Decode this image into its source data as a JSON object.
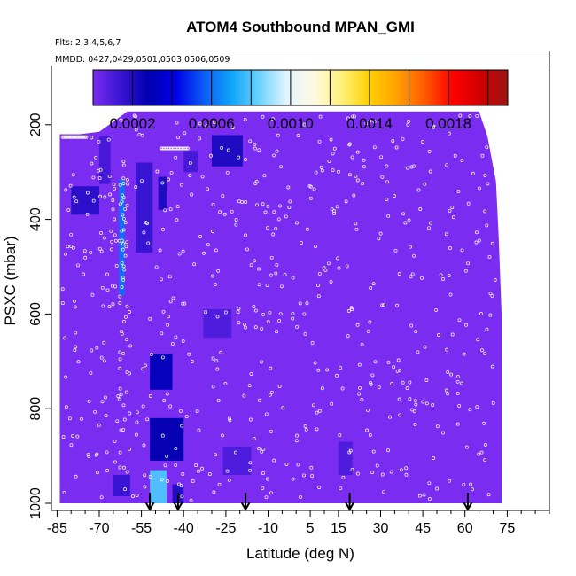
{
  "chart_data": {
    "type": "heatmap",
    "title": "ATOM4 Southbound MPAN_GMI",
    "subtitle_flights": "Flts: 2,3,4,5,6,7",
    "subtitle_dates": "MMDD: 0427,0429,0501,0503,0506,0509",
    "xlabel": "Latitude (deg N)",
    "ylabel": "PSXC (mbar)",
    "x_ticks": [
      -85,
      -70,
      -55,
      -40,
      -25,
      -10,
      5,
      15,
      30,
      45,
      60,
      75
    ],
    "x_tick_labels": [
      "-85",
      "-70",
      "-55",
      "-40",
      "-25",
      "-10",
      "5",
      "15",
      "30",
      "45",
      "60",
      "75"
    ],
    "x_range": [
      -87,
      90
    ],
    "y_ticks": [
      200,
      400,
      600,
      800,
      1000
    ],
    "y_tick_labels": [
      "200",
      "400",
      "600",
      "800",
      "1000"
    ],
    "y_range": [
      1015,
      45
    ],
    "y_reversed": true,
    "colorbar": {
      "min": 0.0,
      "max": 0.0021,
      "tick_values": [
        0.0002,
        0.0006,
        0.001,
        0.0014,
        0.0018
      ],
      "tick_labels": [
        "0.0002",
        "0.0006",
        "0.0010",
        "0.0014",
        "0.0018"
      ],
      "colors": [
        "#7a2cf0",
        "#3a14d2",
        "#0000b0",
        "#0000e8",
        "#0a5cf6",
        "#10a4fa",
        "#6ad2ff",
        "#e2f4ff",
        "#fffae0",
        "#fff07a",
        "#ffd000",
        "#ffa000",
        "#ff5a00",
        "#ff0000",
        "#d00000",
        "#9c1515"
      ]
    },
    "background_color": "#7a2cf0",
    "arrow_latitudes": [
      -52,
      -42,
      -18,
      19,
      61
    ],
    "data_extent": [
      [
        -84,
        220,
        1000
      ],
      [
        -77,
        220,
        1000
      ],
      [
        -70,
        215,
        1000
      ],
      [
        -60,
        172,
        1000
      ],
      [
        -55,
        172,
        1000
      ],
      [
        -45,
        172,
        1000
      ],
      [
        -30,
        172,
        1000
      ],
      [
        -10,
        172,
        1000
      ],
      [
        20,
        172,
        1000
      ],
      [
        45,
        172,
        1000
      ],
      [
        60,
        172,
        1000
      ],
      [
        65,
        172,
        1000
      ],
      [
        68,
        225,
        1000
      ],
      [
        71,
        320,
        1000
      ],
      [
        72,
        440,
        1000
      ],
      [
        73,
        600,
        1000
      ]
    ],
    "features": [
      {
        "lat": [
          -70,
          -66
        ],
        "p": [
          225,
          325
        ],
        "value": 0.00012
      },
      {
        "lat": [
          -63,
          -61
        ],
        "p": [
          315,
          560
        ],
        "value": 0.0006
      },
      {
        "lat": [
          -80,
          -70
        ],
        "p": [
          330,
          390
        ],
        "value": 0.00018
      },
      {
        "lat": [
          -57,
          -51
        ],
        "p": [
          280,
          470
        ],
        "value": 0.00015
      },
      {
        "lat": [
          -49,
          -46
        ],
        "p": [
          310,
          380
        ],
        "value": 0.00022
      },
      {
        "lat": [
          -40,
          -35
        ],
        "p": [
          255,
          300
        ],
        "value": 0.00012
      },
      {
        "lat": [
          -30,
          -19
        ],
        "p": [
          222,
          288
        ],
        "value": 0.00022
      },
      {
        "lat": [
          -52,
          -44
        ],
        "p": [
          685,
          760
        ],
        "value": 0.0003
      },
      {
        "lat": [
          -52,
          -40
        ],
        "p": [
          820,
          910
        ],
        "value": 0.00028
      },
      {
        "lat": [
          -33,
          -23
        ],
        "p": [
          590,
          650
        ],
        "value": 0.0001
      },
      {
        "lat": [
          -26,
          -16
        ],
        "p": [
          880,
          940
        ],
        "value": 0.0001
      },
      {
        "lat": [
          -65,
          -59
        ],
        "p": [
          940,
          985
        ],
        "value": 0.00015
      },
      {
        "lat": [
          -52,
          -46
        ],
        "p": [
          930,
          1000
        ],
        "value": 0.0008
      },
      {
        "lat": [
          -44,
          -40
        ],
        "p": [
          960,
          1000
        ],
        "value": 0.0002
      },
      {
        "lat": [
          15,
          20
        ],
        "p": [
          870,
          940
        ],
        "value": 0.0001
      }
    ]
  }
}
